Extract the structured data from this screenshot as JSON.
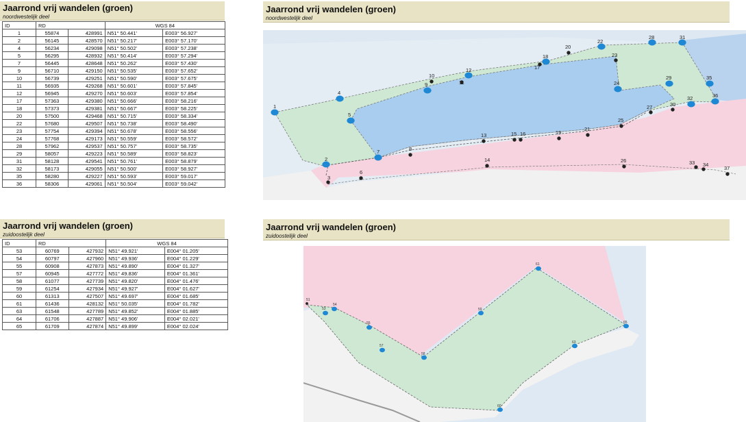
{
  "nw_table": {
    "title": "Jaarrond vrij wandelen (groen)",
    "subtitle": "noordwestelijk deel",
    "headers": {
      "id": "ID",
      "rd": "RD",
      "wgs": "WGS 84"
    },
    "rows": [
      [
        "1",
        "55874",
        "428991",
        "N51° 50.441'",
        "E003° 56.927'"
      ],
      [
        "2",
        "56145",
        "428570",
        "N51° 50.217'",
        "E003° 57.170'"
      ],
      [
        "4",
        "56234",
        "429098",
        "N51° 50.502'",
        "E003° 57.238'"
      ],
      [
        "5",
        "56295",
        "428932",
        "N51° 50.414'",
        "E003° 57.294'"
      ],
      [
        "7",
        "56445",
        "428648",
        "N51° 50.262'",
        "E003° 57.430'"
      ],
      [
        "9",
        "56710",
        "429150",
        "N51° 50.535'",
        "E003° 57.652'"
      ],
      [
        "10",
        "56739",
        "429251",
        "N51° 50.590'",
        "E003° 57.675'"
      ],
      [
        "11",
        "56935",
        "429268",
        "N51° 50.601'",
        "E003° 57.845'"
      ],
      [
        "12",
        "56945",
        "429270",
        "N51° 50.603'",
        "E003° 57.854'"
      ],
      [
        "17",
        "57363",
        "429380",
        "N51° 50.666'",
        "E003° 58.216'"
      ],
      [
        "18",
        "57373",
        "429381",
        "N51° 50.667'",
        "E003° 58.225'"
      ],
      [
        "20",
        "57500",
        "429468",
        "N51° 50.715'",
        "E003° 58.334'"
      ],
      [
        "22",
        "57680",
        "429507",
        "N51° 50.738'",
        "E003° 58.490'"
      ],
      [
        "23",
        "57754",
        "429394",
        "N51° 50.678'",
        "E003° 58.556'"
      ],
      [
        "24",
        "57768",
        "429173",
        "N51° 50.559'",
        "E003° 58.572'"
      ],
      [
        "28",
        "57962",
        "429537",
        "N51° 50.757'",
        "E003° 58.735'"
      ],
      [
        "29",
        "58057",
        "429223",
        "N51° 50.589'",
        "E003° 58.823'"
      ],
      [
        "31",
        "58128",
        "429541",
        "N51° 50.761'",
        "E003° 58.879'"
      ],
      [
        "32",
        "58173",
        "429055",
        "N51° 50.500'",
        "E003° 58.927'"
      ],
      [
        "35",
        "58280",
        "429227",
        "N51° 50.593'",
        "E003° 59.017'"
      ],
      [
        "36",
        "58306",
        "429061",
        "N51° 50.504'",
        "E003° 59.042'"
      ]
    ]
  },
  "se_table": {
    "title": "Jaarrond vrij wandelen (groen)",
    "subtitle": "zuidoostelijk deel",
    "headers": {
      "id": "ID",
      "rd": "RD",
      "wgs": "WGS 84"
    },
    "rows": [
      [
        "53",
        "60769",
        "427932",
        "N51° 49.921'",
        "E004° 01.205'"
      ],
      [
        "54",
        "60797",
        "427960",
        "N51° 49.936'",
        "E004° 01.229'"
      ],
      [
        "55",
        "60908",
        "427873",
        "N51° 49.890'",
        "E004° 01.327'"
      ],
      [
        "57",
        "60945",
        "427772",
        "N51° 49.836'",
        "E004° 01.361'"
      ],
      [
        "58",
        "61077",
        "427739",
        "N51° 49.820'",
        "E004° 01.476'"
      ],
      [
        "59",
        "61254",
        "427934",
        "N51° 49.927'",
        "E004° 01.627'"
      ],
      [
        "60",
        "61313",
        "427507",
        "N51° 49.697'",
        "E004° 01.685'"
      ],
      [
        "61",
        "61436",
        "428132",
        "N51° 50.035'",
        "E004° 01.782'"
      ],
      [
        "63",
        "61548",
        "427789",
        "N51° 49.852'",
        "E004° 01.885'"
      ],
      [
        "64",
        "61706",
        "427887",
        "N51° 49.906'",
        "E004° 02.021'"
      ],
      [
        "65",
        "61709",
        "427874",
        "N51° 49.899'",
        "E004° 02.024'"
      ]
    ]
  },
  "nw_map": {
    "title": "Jaarrond vrij wandelen (groen)",
    "subtitle": "noordwestelijk deel",
    "colors": {
      "green_zone": "#cfe8d4",
      "blue_zone": "#a9cdee",
      "pink_zone": "#f7d5e0",
      "sea": "#dfe9f3",
      "marker": "#1e88d4"
    },
    "markers": [
      {
        "id": "1"
      },
      {
        "id": "2"
      },
      {
        "id": "3"
      },
      {
        "id": "4"
      },
      {
        "id": "5"
      },
      {
        "id": "6"
      },
      {
        "id": "7"
      },
      {
        "id": "8"
      },
      {
        "id": "9"
      },
      {
        "id": "10"
      },
      {
        "id": "11"
      },
      {
        "id": "12"
      },
      {
        "id": "13"
      },
      {
        "id": "14"
      },
      {
        "id": "15"
      },
      {
        "id": "16"
      },
      {
        "id": "17"
      },
      {
        "id": "18"
      },
      {
        "id": "19"
      },
      {
        "id": "20"
      },
      {
        "id": "21"
      },
      {
        "id": "22"
      },
      {
        "id": "23"
      },
      {
        "id": "24"
      },
      {
        "id": "25"
      },
      {
        "id": "26"
      },
      {
        "id": "27"
      },
      {
        "id": "28"
      },
      {
        "id": "29"
      },
      {
        "id": "30"
      },
      {
        "id": "31"
      },
      {
        "id": "32"
      },
      {
        "id": "33"
      },
      {
        "id": "34"
      },
      {
        "id": "35"
      },
      {
        "id": "36"
      },
      {
        "id": "37"
      }
    ]
  },
  "se_map": {
    "title": "Jaarrond vrij wandelen (groen)",
    "subtitle": "zuidoostelijk deel",
    "colors": {
      "green_zone": "#cfe8d4",
      "pink_zone": "#f7d5e0",
      "sea": "#dfe9f3",
      "marker": "#1e88d4"
    },
    "markers": [
      {
        "id": "51"
      },
      {
        "id": "53"
      },
      {
        "id": "54"
      },
      {
        "id": "55"
      },
      {
        "id": "57"
      },
      {
        "id": "58"
      },
      {
        "id": "59"
      },
      {
        "id": "60"
      },
      {
        "id": "61"
      },
      {
        "id": "63"
      },
      {
        "id": "65"
      }
    ]
  }
}
